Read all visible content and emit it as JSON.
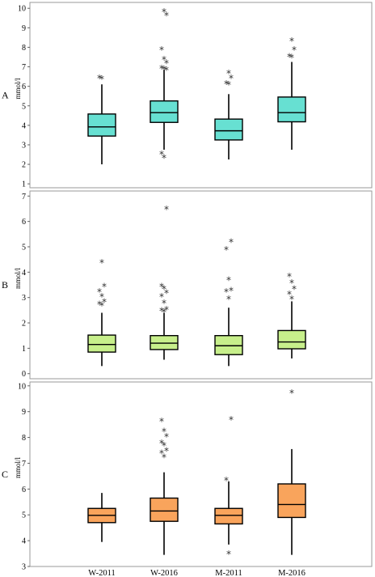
{
  "chart_data": [
    {
      "type": "box",
      "panel_label": "A",
      "ylabel": "mmol/l",
      "ylim": [
        0.8,
        10.3
      ],
      "yticks": [
        1,
        2,
        3,
        4,
        5,
        6,
        7,
        8,
        9,
        10
      ],
      "color": "#67e0d2",
      "categories": [
        "W-2011",
        "W-2016",
        "M-2011",
        "M-2016"
      ],
      "boxes": [
        {
          "whisker_low": 2.0,
          "q1": 3.45,
          "median": 3.92,
          "q3": 4.58,
          "whisker_high": 6.1,
          "outliers": [
            6.4,
            6.45
          ]
        },
        {
          "whisker_low": 2.75,
          "q1": 4.15,
          "median": 4.65,
          "q3": 5.25,
          "whisker_high": 6.85,
          "outliers": [
            2.35,
            2.55,
            6.85,
            6.9,
            6.95,
            7.2,
            7.4,
            7.9,
            9.65,
            9.85
          ]
        },
        {
          "whisker_low": 2.25,
          "q1": 3.25,
          "median": 3.72,
          "q3": 4.32,
          "whisker_high": 5.6,
          "outliers": [
            6.1,
            6.15,
            6.45,
            6.7
          ]
        },
        {
          "whisker_low": 2.75,
          "q1": 4.18,
          "median": 4.65,
          "q3": 5.45,
          "whisker_high": 7.25,
          "outliers": [
            7.5,
            7.55,
            7.9,
            8.35
          ]
        }
      ]
    },
    {
      "type": "box",
      "panel_label": "B",
      "ylabel": "mmol/l",
      "ylim": [
        -0.2,
        7.2
      ],
      "yticks": [
        0,
        1,
        2,
        3,
        4,
        5,
        6,
        7
      ],
      "color": "#c7ef8b",
      "categories": [
        "W-2011",
        "W-2016",
        "M-2011",
        "M-2016"
      ],
      "boxes": [
        {
          "whisker_low": 0.3,
          "q1": 0.85,
          "median": 1.15,
          "q3": 1.52,
          "whisker_high": 2.4,
          "outliers": [
            2.7,
            2.75,
            2.85,
            3.05,
            3.25,
            3.45,
            4.4
          ]
        },
        {
          "whisker_low": 0.55,
          "q1": 0.95,
          "median": 1.2,
          "q3": 1.5,
          "whisker_high": 2.4,
          "outliers": [
            2.45,
            2.5,
            2.55,
            2.8,
            3.05,
            3.2,
            3.35,
            3.45,
            6.5
          ]
        },
        {
          "whisker_low": 0.3,
          "q1": 0.75,
          "median": 1.1,
          "q3": 1.5,
          "whisker_high": 2.6,
          "outliers": [
            2.95,
            3.25,
            3.3,
            3.7,
            4.9,
            5.2
          ]
        },
        {
          "whisker_low": 0.6,
          "q1": 0.98,
          "median": 1.25,
          "q3": 1.7,
          "whisker_high": 2.85,
          "outliers": [
            2.95,
            3.15,
            3.35,
            3.6,
            3.85
          ]
        }
      ]
    },
    {
      "type": "box",
      "panel_label": "C",
      "ylabel": "mmol/l",
      "ylim": [
        3.0,
        10.15
      ],
      "yticks": [
        3,
        4,
        5,
        6,
        7,
        8,
        9,
        10
      ],
      "color": "#f9a45c",
      "categories": [
        "W-2011",
        "W-2016",
        "M-2011",
        "M-2016"
      ],
      "boxes": [
        {
          "whisker_low": 3.95,
          "q1": 4.7,
          "median": 4.98,
          "q3": 5.25,
          "whisker_high": 5.85,
          "outliers": []
        },
        {
          "whisker_low": 3.45,
          "q1": 4.75,
          "median": 5.15,
          "q3": 5.65,
          "whisker_high": 6.65,
          "outliers": [
            7.25,
            7.4,
            7.5,
            7.7,
            7.8,
            8.05,
            8.25,
            8.65
          ]
        },
        {
          "whisker_low": 3.85,
          "q1": 4.65,
          "median": 4.98,
          "q3": 5.25,
          "whisker_high": 6.3,
          "outliers": [
            3.5,
            6.35,
            8.7
          ]
        },
        {
          "whisker_low": 3.45,
          "q1": 4.9,
          "median": 5.4,
          "q3": 6.2,
          "whisker_high": 7.55,
          "outliers": [
            9.75
          ]
        }
      ]
    }
  ]
}
